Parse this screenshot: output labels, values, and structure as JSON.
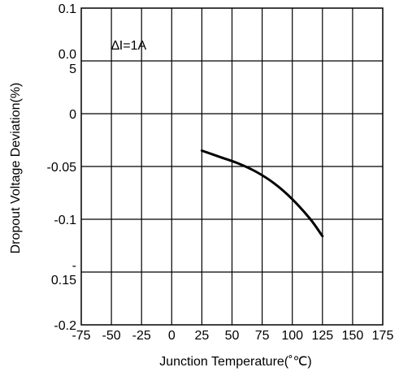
{
  "chart_data": {
    "type": "line",
    "title": "",
    "xlabel": "Junction Temperature(˚℃)",
    "ylabel": "Dropout Voltage Deviation(%)",
    "xlim": [
      -75,
      175
    ],
    "ylim": [
      -0.2,
      0.1
    ],
    "x_ticks": [
      -75,
      -50,
      -25,
      0,
      25,
      50,
      75,
      100,
      125,
      150,
      175
    ],
    "x_tick_labels": [
      "-75",
      "-50",
      "-25",
      "0",
      "25",
      "50",
      "75",
      "100",
      "125",
      "150",
      "175"
    ],
    "y_ticks": [
      0.1,
      0.05,
      0,
      -0.05,
      -0.1,
      -0.15,
      -0.2
    ],
    "y_tick_labels": [
      [
        "0.1"
      ],
      [
        "0.0",
        "5"
      ],
      [
        "0"
      ],
      [
        "-0.05"
      ],
      [
        "-0.1"
      ],
      [
        "-",
        "0.15"
      ],
      [
        "-0.2"
      ]
    ],
    "grid": true,
    "annotation": "∆I=1A",
    "series": [
      {
        "x": [
          25,
          40,
          55,
          70,
          85,
          100,
          115,
          125
        ],
        "y": [
          -0.035,
          -0.041,
          -0.047,
          -0.055,
          -0.066,
          -0.081,
          -0.1,
          -0.116
        ]
      }
    ]
  }
}
